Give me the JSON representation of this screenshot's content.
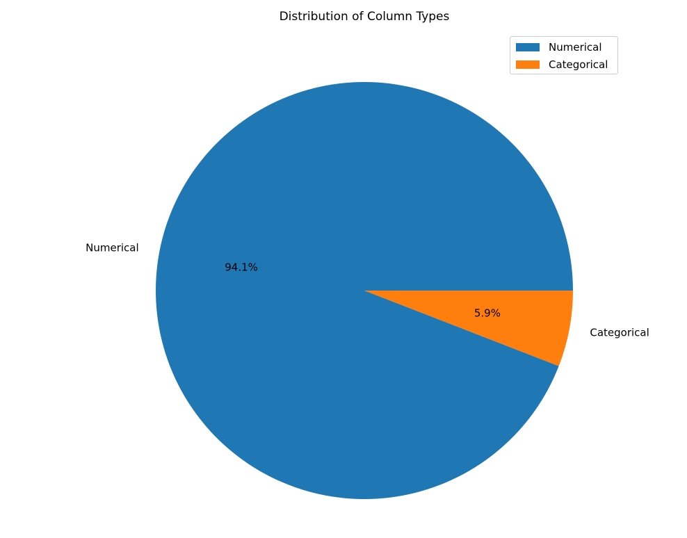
{
  "chart_data": {
    "type": "pie",
    "title": "Distribution of Column Types",
    "slices": [
      {
        "label": "Numerical",
        "value": 94.1,
        "pct_label": "94.1%",
        "color": "#1f77b4"
      },
      {
        "label": "Categorical",
        "value": 5.9,
        "pct_label": "5.9%",
        "color": "#ff7f0e"
      }
    ],
    "start_angle_deg": 0,
    "direction": "counterclockwise",
    "legend": {
      "placement": "upper right",
      "entries": [
        "Numerical",
        "Categorical"
      ]
    }
  }
}
